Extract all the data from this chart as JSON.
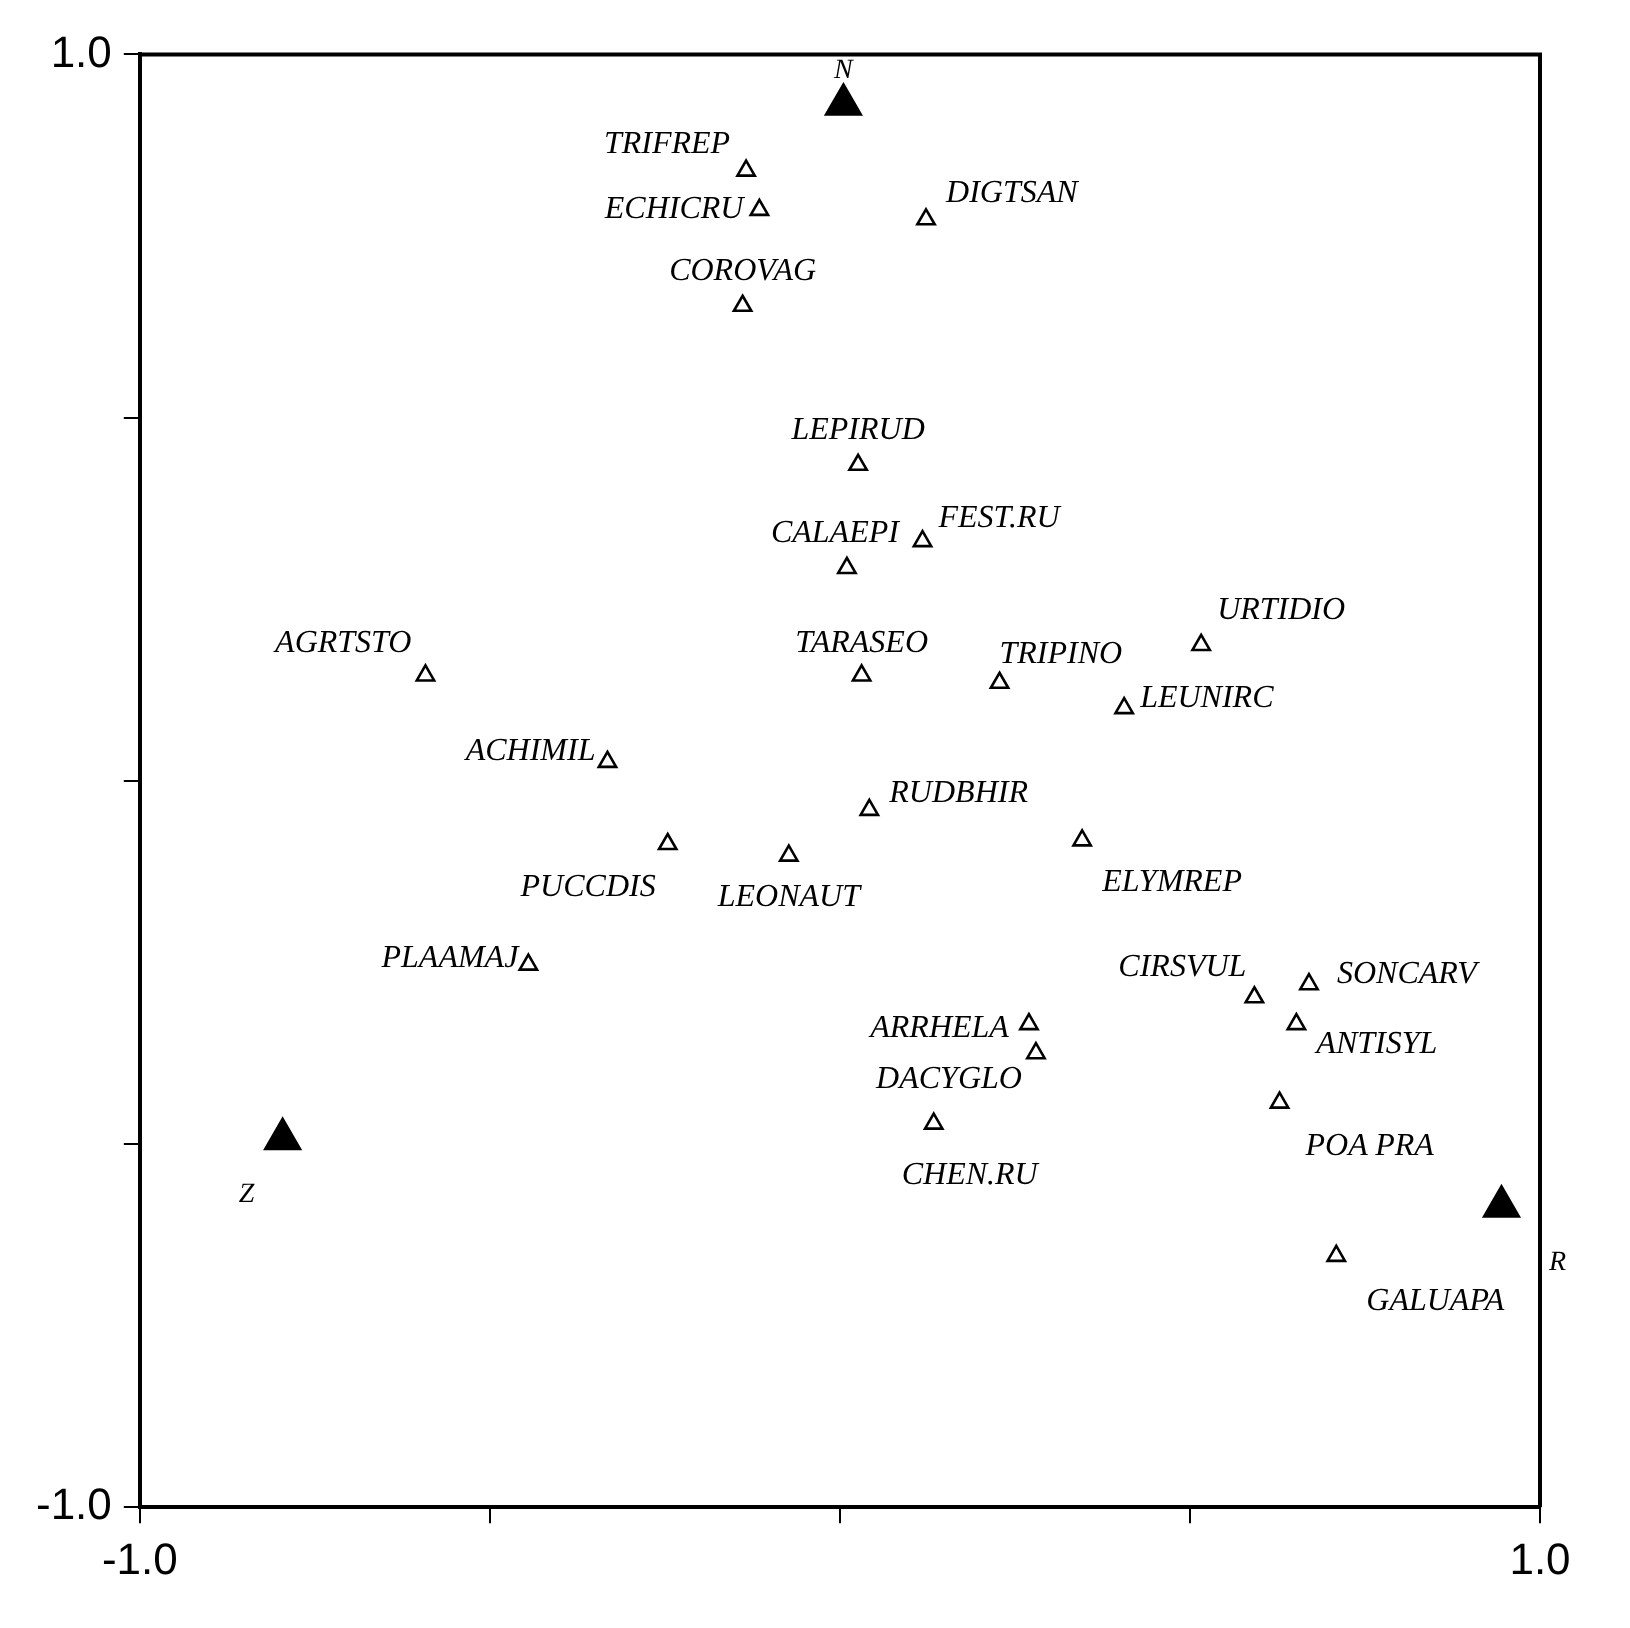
{
  "chart_data": {
    "type": "scatter",
    "marker": "triangle",
    "grid": false,
    "legend": false,
    "xlim": [
      -1,
      1
    ],
    "xticks": [
      {
        "value": -1,
        "label": "-1.0"
      },
      {
        "value": -0.5,
        "label": null
      },
      {
        "value": 0,
        "label": null
      },
      {
        "value": 0.5,
        "label": null
      },
      {
        "value": 1,
        "label": "1.0"
      }
    ],
    "ylim": [
      -1,
      1
    ],
    "yticks": [
      {
        "value": -1,
        "label": "-1.0"
      },
      {
        "value": -0.5,
        "label": null
      },
      {
        "value": 0,
        "label": null
      },
      {
        "value": 0.5,
        "label": null
      },
      {
        "value": 1,
        "label": "1.0"
      }
    ],
    "series": [
      {
        "type": "scatter",
        "color": "#000000",
        "x": [
          -0.134,
          -0.115,
          0.123,
          -0.139,
          0.026,
          0.01,
          0.118,
          0.516,
          -0.592,
          0.031,
          0.228,
          0.406,
          -0.332,
          0.042,
          -0.246,
          -0.073,
          0.346,
          -0.445,
          0.592,
          0.67,
          0.652,
          0.27,
          0.28,
          0.134,
          0.628,
          0.709
        ],
        "values": [
          0.84,
          0.786,
          0.773,
          0.654,
          0.435,
          0.293,
          0.33,
          0.187,
          0.145,
          0.145,
          0.135,
          0.1,
          0.026,
          -0.04,
          -0.087,
          -0.103,
          -0.082,
          -0.253,
          -0.298,
          -0.28,
          -0.335,
          -0.335,
          -0.375,
          -0.472,
          -0.443,
          -0.654
        ]
      },
      {
        "type": "scatter",
        "color": "#000000",
        "x": [
          0.005,
          -0.796,
          0.945
        ],
        "values": [
          0.931,
          -0.493,
          -0.586
        ]
      }
    ],
    "annotations": [
      {
        "text": "TRIFREP",
        "x": -0.134,
        "y": 0.84
      },
      {
        "text": "ECHICRU",
        "x": -0.115,
        "y": 0.786
      },
      {
        "text": "DIGTSAN",
        "x": 0.123,
        "y": 0.773
      },
      {
        "text": "COROVAG",
        "x": -0.139,
        "y": 0.654
      },
      {
        "text": "LEPIRUD",
        "x": 0.026,
        "y": 0.435
      },
      {
        "text": "CALAEPI",
        "x": 0.01,
        "y": 0.293
      },
      {
        "text": "FEST.RU",
        "x": 0.118,
        "y": 0.33
      },
      {
        "text": "URTIDIO",
        "x": 0.516,
        "y": 0.187
      },
      {
        "text": "AGRTSTO",
        "x": -0.592,
        "y": 0.145
      },
      {
        "text": "TARASEO",
        "x": 0.031,
        "y": 0.145
      },
      {
        "text": "TRIPINO",
        "x": 0.228,
        "y": 0.135
      },
      {
        "text": "LEUNIRC",
        "x": 0.406,
        "y": 0.1
      },
      {
        "text": "ACHIMIL",
        "x": -0.332,
        "y": 0.026
      },
      {
        "text": "RUDBHIR",
        "x": 0.042,
        "y": -0.04
      },
      {
        "text": "PUCCDIS",
        "x": -0.246,
        "y": -0.087
      },
      {
        "text": "LEONAUT",
        "x": -0.073,
        "y": -0.103
      },
      {
        "text": "ELYMREP",
        "x": 0.346,
        "y": -0.082
      },
      {
        "text": "PLAAMAJ",
        "x": -0.445,
        "y": -0.253
      },
      {
        "text": "CIRSVUL",
        "x": 0.592,
        "y": -0.298
      },
      {
        "text": "SONCARV",
        "x": 0.67,
        "y": -0.28
      },
      {
        "text": "ANTISYL",
        "x": 0.652,
        "y": -0.335
      },
      {
        "text": "ARRHELA",
        "x": 0.27,
        "y": -0.335
      },
      {
        "text": "DACYGLO",
        "x": 0.28,
        "y": -0.375
      },
      {
        "text": "CHEN.RU",
        "x": 0.134,
        "y": -0.472
      },
      {
        "text": "POA PRA",
        "x": 0.628,
        "y": -0.443
      },
      {
        "text": "GALUAPA",
        "x": 0.709,
        "y": -0.654
      },
      {
        "text": "N",
        "x": 0.005,
        "y": 0.931
      },
      {
        "text": "Z",
        "x": -0.796,
        "y": -0.493
      },
      {
        "text": "R",
        "x": 0.945,
        "y": -0.586
      }
    ]
  }
}
